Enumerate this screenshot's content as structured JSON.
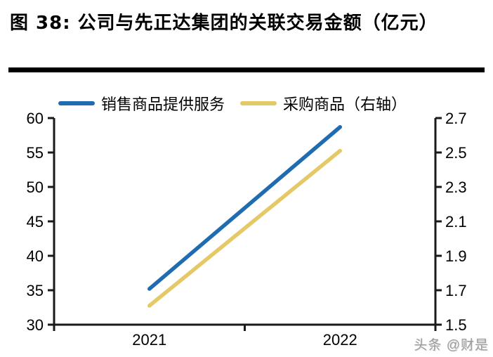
{
  "title": "图 38: 公司与先正达集团的关联交易金额（亿元）",
  "watermark": "头条 @财是",
  "colors": {
    "series_blue": "#1F6CB0",
    "series_yellow": "#E5C966",
    "axis": "#1A1A1A",
    "title_rule": "#000000",
    "watermark_gray": "#9B9B9B"
  },
  "chart_data": {
    "type": "line",
    "title": "公司与先正达集团的关联交易金额（亿元）",
    "categories": [
      "2021",
      "2022"
    ],
    "series": [
      {
        "name": "销售商品提供服务",
        "axis": "left",
        "color": "#1F6CB0",
        "values": [
          35.2,
          58.7
        ]
      },
      {
        "name": "采购商品（右轴）",
        "axis": "right",
        "color": "#E5C966",
        "values": [
          1.61,
          2.51
        ]
      }
    ],
    "left_axis": {
      "min": 30,
      "max": 60,
      "ticks": [
        30,
        35,
        40,
        45,
        50,
        55,
        60
      ],
      "decimals": 0
    },
    "right_axis": {
      "min": 1.5,
      "max": 2.7,
      "ticks": [
        1.5,
        1.7,
        1.9,
        2.1,
        2.3,
        2.5,
        2.7
      ],
      "decimals": 1
    },
    "legend_position": "top",
    "grid": false
  }
}
